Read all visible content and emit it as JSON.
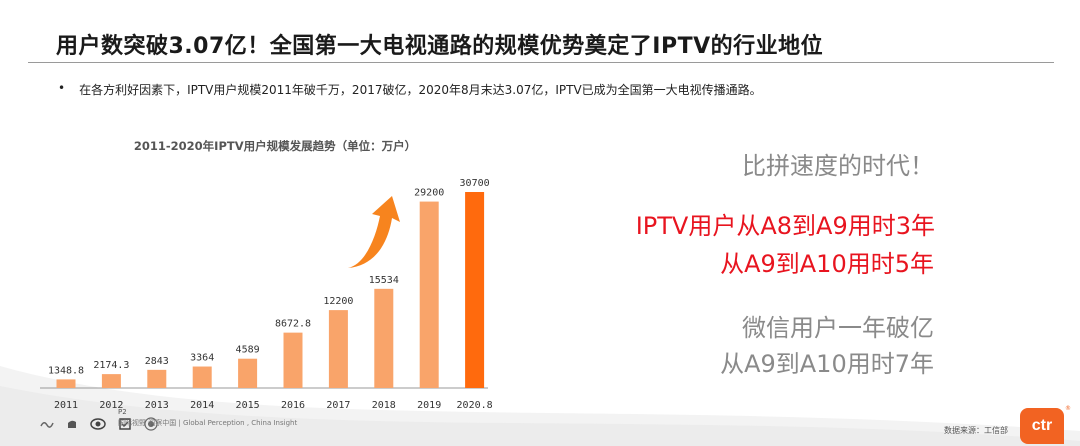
{
  "header": {
    "title": "用户数突破3.07亿！全国第一大电视通路的规模优势奠定了IPTV的行业地位"
  },
  "bullet": {
    "marker": "•",
    "text": "在各方利好因素下，IPTV用户规模2011年破千万，2017破亿，2020年8月末达3.07亿，IPTV已成为全国第一大电视传播通路。"
  },
  "chart_data": {
    "type": "bar",
    "title": "2011-2020年IPTV用户规模发展趋势（单位：万户）",
    "categories": [
      "2011",
      "2012",
      "2013",
      "2014",
      "2015",
      "2016",
      "2017",
      "2018",
      "2019",
      "2020.8"
    ],
    "values": [
      1348.8,
      2174.3,
      2843,
      3364,
      4589,
      8672.8,
      12200,
      15534,
      29200,
      30700
    ],
    "value_labels": [
      "1348.8",
      "2174.3",
      "2843",
      "3364",
      "4589",
      "8672.8",
      "12200",
      "15534",
      "29200",
      "30700"
    ],
    "ylim": [
      0,
      30700
    ],
    "grid": false,
    "colors": {
      "bar": "#f9a46a",
      "highlight": "#ff6a0d",
      "arrow": "#f7841e"
    },
    "highlight_index": 9,
    "annotations": [
      "up-arrow"
    ]
  },
  "side": {
    "line1": "比拼速度的时代！",
    "line2": "IPTV用户从A8到A9用时3年",
    "line3": "从A9到A10用时5年",
    "line4": "微信用户一年破亿",
    "line5": "从A9到A10用时7年"
  },
  "footer": {
    "page": "P2",
    "brand_text": "国际视野 洞察中国 | Global Perception , China Insight",
    "source": "数据来源：工信部",
    "logo_text": "ctr",
    "logo_mark": "®",
    "icons": [
      "wave-icon",
      "hand-icon",
      "eye-icon",
      "badge-icon",
      "target-icon"
    ]
  }
}
